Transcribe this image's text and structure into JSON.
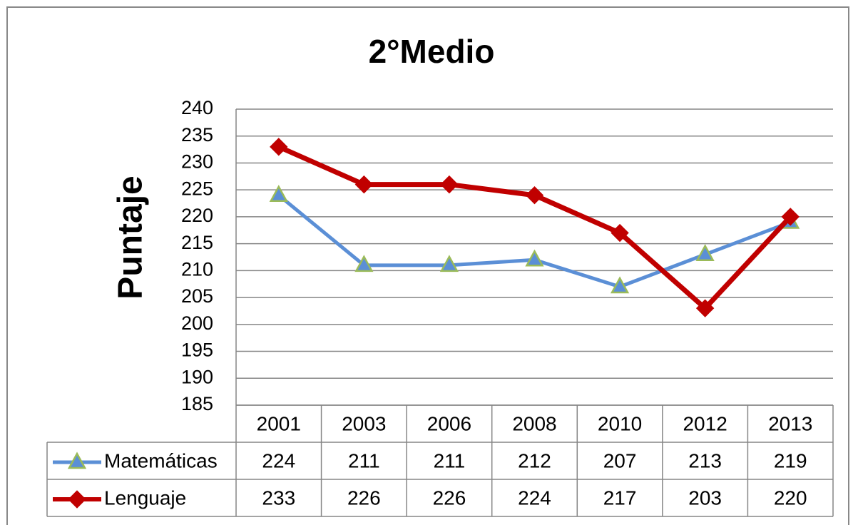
{
  "chart_data": {
    "type": "line",
    "title": "2°Medio",
    "y_label": "Puntaje",
    "categories": [
      "2001",
      "2003",
      "2006",
      "2008",
      "2010",
      "2012",
      "2013"
    ],
    "series": [
      {
        "name": "Matemáticas",
        "color": "#5b8fd6",
        "marker": "triangle",
        "marker_edge": "#9bbb59",
        "values": [
          224,
          211,
          211,
          212,
          207,
          213,
          219
        ]
      },
      {
        "name": "Lenguaje",
        "color": "#c00000",
        "marker": "diamond",
        "marker_edge": "#c00000",
        "values": [
          233,
          226,
          226,
          224,
          217,
          203,
          220
        ]
      }
    ],
    "ylim": [
      185,
      240
    ],
    "yticks": [
      185,
      190,
      195,
      200,
      205,
      210,
      215,
      220,
      225,
      230,
      235,
      240
    ],
    "grid": true,
    "data_table": true
  }
}
